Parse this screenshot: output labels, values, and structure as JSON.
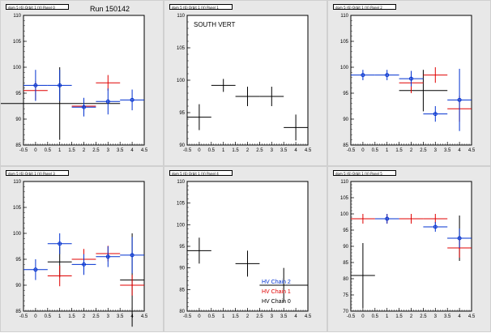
{
  "run_label": "Run 150142",
  "colors": {
    "black": "#000000",
    "red": "#e00000",
    "blue": "#0030d0",
    "frame_bg": "#e8e8e8",
    "plot_bg": "#ffffff"
  },
  "chart_data": [
    {
      "type": "scatter",
      "title": "dom 5 (6) Orbit 1 (V) Panel 0",
      "xlim": [
        -0.5,
        4.5
      ],
      "ylim": [
        85,
        110
      ],
      "xticks": [
        "-0.5",
        "0",
        "0.5",
        "1",
        "1.5",
        "2",
        "2.5",
        "3",
        "3.5",
        "4",
        "4.5"
      ],
      "yticks": [
        "85",
        "90",
        "95",
        "100",
        "105",
        "110"
      ],
      "grid": false,
      "series": [
        {
          "color": "black",
          "points": [
            {
              "x": 1,
              "y": 93,
              "xerr": 2.5,
              "yerr": 7
            }
          ]
        },
        {
          "color": "red",
          "points": [
            {
              "x": 0,
              "y": 95.5,
              "xerr": 0.5,
              "yerr": 1.8
            },
            {
              "x": 2,
              "y": 92.5,
              "xerr": 0.5,
              "yerr": 1.5
            },
            {
              "x": 3,
              "y": 97,
              "xerr": 0.5,
              "yerr": 1.5
            }
          ]
        },
        {
          "color": "blue",
          "points": [
            {
              "x": 0,
              "y": 96.5,
              "xerr": 0.5,
              "yerr": 3
            },
            {
              "x": 1,
              "y": 96.5,
              "xerr": 0.5,
              "yerr": 3
            },
            {
              "x": 2,
              "y": 92.3,
              "xerr": 0.5,
              "yerr": 1.8
            },
            {
              "x": 3,
              "y": 93.4,
              "xerr": 0.5,
              "yerr": 2.5
            },
            {
              "x": 4,
              "y": 93.7,
              "xerr": 0.5,
              "yerr": 2
            }
          ]
        }
      ]
    },
    {
      "type": "scatter",
      "title": "dom 5 (6) Orbit 1 (V) Panel 1",
      "annotation": "SOUTH VERT",
      "xlim": [
        -0.5,
        4.5
      ],
      "ylim": [
        90,
        110
      ],
      "xticks": [
        "-0.5",
        "0",
        "0.5",
        "1",
        "1.5",
        "2",
        "2.5",
        "3",
        "3.5",
        "4",
        "4.5"
      ],
      "yticks": [
        "90",
        "95",
        "100",
        "105",
        "110"
      ],
      "grid": false,
      "series": [
        {
          "color": "black",
          "points": [
            {
              "x": 0,
              "y": 94.3,
              "xerr": 0.5,
              "yerr": 2
            },
            {
              "x": 1,
              "y": 99.2,
              "xerr": 0.5,
              "yerr": 1
            },
            {
              "x": 2,
              "y": 97.5,
              "xerr": 0.5,
              "yerr": 1.5
            },
            {
              "x": 3,
              "y": 97.5,
              "xerr": 0.5,
              "yerr": 1.5
            },
            {
              "x": 4,
              "y": 92.7,
              "xerr": 0.5,
              "yerr": 2
            }
          ]
        }
      ]
    },
    {
      "type": "scatter",
      "title": "dom 5 (6) Orbit 1 (V) Panel 2",
      "xlim": [
        -0.5,
        4.5
      ],
      "ylim": [
        85,
        110
      ],
      "xticks": [
        "-0.5",
        "0",
        "0.5",
        "1",
        "1.5",
        "2",
        "2.5",
        "3",
        "3.5",
        "4",
        "4.5"
      ],
      "yticks": [
        "85",
        "90",
        "95",
        "100",
        "105",
        "110"
      ],
      "grid": false,
      "series": [
        {
          "color": "black",
          "points": [
            {
              "x": 2.5,
              "y": 95.5,
              "xerr": 1,
              "yerr": 4
            }
          ]
        },
        {
          "color": "red",
          "points": [
            {
              "x": 2,
              "y": 97,
              "xerr": 0.5,
              "yerr": 2
            },
            {
              "x": 3,
              "y": 98.5,
              "xerr": 0.5,
              "yerr": 1.5
            },
            {
              "x": 4,
              "y": 92,
              "xerr": 0.5,
              "yerr": 2.5
            }
          ]
        },
        {
          "color": "blue",
          "points": [
            {
              "x": 0,
              "y": 98.5,
              "xerr": 0.5,
              "yerr": 1
            },
            {
              "x": 1,
              "y": 98.5,
              "xerr": 0.5,
              "yerr": 1
            },
            {
              "x": 2,
              "y": 97.8,
              "xerr": 0.5,
              "yerr": 1.5
            },
            {
              "x": 3,
              "y": 91,
              "xerr": 0.5,
              "yerr": 1.5
            },
            {
              "x": 4,
              "y": 93.7,
              "xerr": 0.5,
              "yerr": 6
            }
          ]
        }
      ]
    },
    {
      "type": "scatter",
      "title": "dom 5 (6) Orbit 1 (V) Panel 3",
      "xlim": [
        -0.5,
        4.5
      ],
      "ylim": [
        85,
        110
      ],
      "xticks": [
        "-0.5",
        "0",
        "0.5",
        "1",
        "1.5",
        "2",
        "2.5",
        "3",
        "3.5",
        "4",
        "4.5"
      ],
      "yticks": [
        "85",
        "90",
        "95",
        "100",
        "105",
        "110"
      ],
      "grid": false,
      "series": [
        {
          "color": "black",
          "points": [
            {
              "x": 1,
              "y": 94.5,
              "xerr": 0.5,
              "yerr": 3
            },
            {
              "x": 4,
              "y": 91,
              "xerr": 0.5,
              "yerr": 9
            }
          ]
        },
        {
          "color": "red",
          "points": [
            {
              "x": 1,
              "y": 91.8,
              "xerr": 0.5,
              "yerr": 2
            },
            {
              "x": 2,
              "y": 95,
              "xerr": 0.5,
              "yerr": 2
            },
            {
              "x": 3,
              "y": 96.1,
              "xerr": 0.5,
              "yerr": 1.5
            },
            {
              "x": 4,
              "y": 90,
              "xerr": 0.5,
              "yerr": 2
            }
          ]
        },
        {
          "color": "blue",
          "points": [
            {
              "x": 0,
              "y": 93,
              "xerr": 0.5,
              "yerr": 2
            },
            {
              "x": 1,
              "y": 98,
              "xerr": 0.5,
              "yerr": 2
            },
            {
              "x": 2,
              "y": 94,
              "xerr": 0.5,
              "yerr": 2
            },
            {
              "x": 3,
              "y": 95.5,
              "xerr": 0.5,
              "yerr": 2
            },
            {
              "x": 4,
              "y": 95.8,
              "xerr": 0.5,
              "yerr": 3.5
            }
          ]
        }
      ]
    },
    {
      "type": "scatter",
      "title": "dom 5 (6) Orbit 1 (V) Panel 4",
      "xlim": [
        -0.5,
        4.5
      ],
      "ylim": [
        80,
        110
      ],
      "xticks": [
        "-0.5",
        "0",
        "0.5",
        "1",
        "1.5",
        "2",
        "2.5",
        "3",
        "3.5",
        "4",
        "4.5"
      ],
      "yticks": [
        "80",
        "85",
        "90",
        "95",
        "100",
        "105",
        "110"
      ],
      "grid": false,
      "legend": {
        "position": "bottom-right",
        "entries": [
          {
            "label": "HV Chain 2",
            "color": "blue"
          },
          {
            "label": "HV Chain 1",
            "color": "red"
          },
          {
            "label": "HV Chain 0",
            "color": "black"
          }
        ]
      },
      "series": [
        {
          "color": "black",
          "points": [
            {
              "x": 0,
              "y": 94,
              "xerr": 0.5,
              "yerr": 3
            },
            {
              "x": 2,
              "y": 91,
              "xerr": 0.5,
              "yerr": 3
            },
            {
              "x": 3.5,
              "y": 86,
              "xerr": 1,
              "yerr": 4
            }
          ]
        }
      ]
    },
    {
      "type": "scatter",
      "title": "dom 5 (6) Orbit 1 (V) Panel 5",
      "xlim": [
        -0.5,
        4.5
      ],
      "ylim": [
        70,
        110
      ],
      "xticks": [
        "-0.5",
        "0",
        "0.5",
        "1",
        "1.5",
        "2",
        "2.5",
        "3",
        "3.5",
        "4",
        "4.5"
      ],
      "yticks": [
        "70",
        "75",
        "80",
        "85",
        "90",
        "95",
        "100",
        "105",
        "110"
      ],
      "grid": false,
      "series": [
        {
          "color": "black",
          "points": [
            {
              "x": 0,
              "y": 81,
              "xerr": 0.5,
              "yerr": 10
            },
            {
              "x": 4,
              "y": 92.5,
              "xerr": 0.5,
              "yerr": 7
            }
          ]
        },
        {
          "color": "red",
          "points": [
            {
              "x": 0,
              "y": 98.5,
              "xerr": 0.5,
              "yerr": 1.5
            },
            {
              "x": 1,
              "y": 98.5,
              "xerr": 0.5,
              "yerr": 1.5
            },
            {
              "x": 2,
              "y": 98.5,
              "xerr": 0.5,
              "yerr": 1.5
            },
            {
              "x": 3,
              "y": 98.5,
              "xerr": 0.5,
              "yerr": 1.5
            },
            {
              "x": 4,
              "y": 89.5,
              "xerr": 0.5,
              "yerr": 3
            }
          ]
        },
        {
          "color": "blue",
          "points": [
            {
              "x": 1,
              "y": 98.5,
              "xerr": 0.5,
              "yerr": 1.5
            },
            {
              "x": 3,
              "y": 96,
              "xerr": 0.5,
              "yerr": 1.5
            },
            {
              "x": 4,
              "y": 92.5,
              "xerr": 0.5,
              "yerr": 3
            }
          ]
        }
      ]
    }
  ]
}
